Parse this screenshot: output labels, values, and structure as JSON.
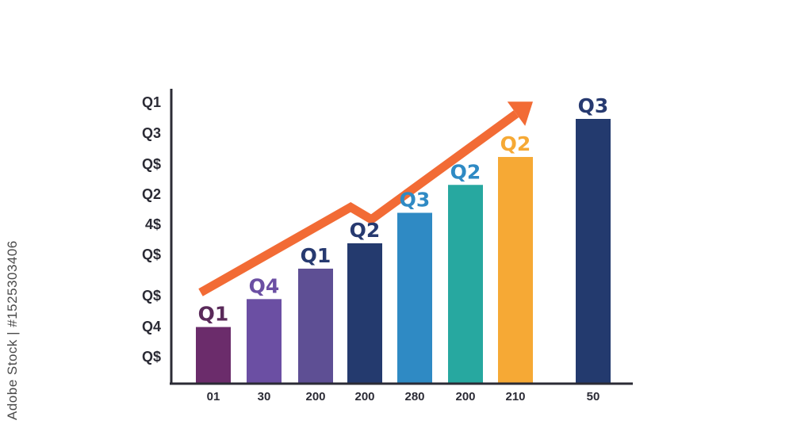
{
  "stock_id": "Adobe Stock | #1525303406",
  "chart_data": {
    "type": "bar",
    "categories": [
      "01",
      "30",
      "200",
      "200",
      "280",
      "200",
      "210",
      "50"
    ],
    "values": [
      22,
      33,
      45,
      55,
      67,
      78,
      89,
      104
    ],
    "data_labels": [
      "Q1",
      "Q4",
      "Q1",
      "Q2",
      "Q3",
      "Q2",
      "Q2",
      "Q3"
    ],
    "bar_colors": [
      "#6b2c6b",
      "#6b4fa3",
      "#5e4f94",
      "#243a6e",
      "#2f8ac4",
      "#27a8a0",
      "#f6a935",
      "#233a6e"
    ],
    "label_colors": [
      "#5a2a5a",
      "#6b4fa3",
      "#273a70",
      "#273a70",
      "#2f8ac4",
      "#2f8ac4",
      "#f6a935",
      "#273a70"
    ],
    "y_tick_labels": [
      "Q$",
      "Q4",
      "Q$",
      "Q$",
      "4$",
      "Q2",
      "Q$",
      "Q3",
      "Q1"
    ],
    "ylim": [
      0,
      110
    ],
    "trend_arrow": {
      "color": "#f26b35",
      "points": [
        [
          0,
          32
        ],
        [
          2.9,
          74
        ],
        [
          3.3,
          68
        ],
        [
          6.1,
          120
        ]
      ]
    },
    "grid": false,
    "legend": "none"
  }
}
